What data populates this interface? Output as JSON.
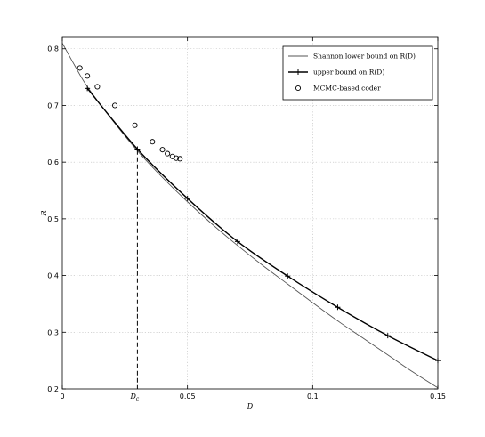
{
  "chart_data": {
    "type": "line",
    "title": "",
    "xlabel": "D",
    "ylabel": "R",
    "xlim": [
      0,
      0.15
    ],
    "ylim": [
      0.2,
      0.82
    ],
    "xticks": [
      0,
      0.05,
      0.1,
      0.15
    ],
    "xtick_labels": [
      "0",
      "0.05",
      "0.1",
      "0.15"
    ],
    "yticks": [
      0.2,
      0.3,
      0.4,
      0.5,
      0.6,
      0.7,
      0.8
    ],
    "ytick_labels": [
      "0.2",
      "0.3",
      "0.4",
      "0.5",
      "0.6",
      "0.7",
      "0.8"
    ],
    "grid": true,
    "legend_position": "top-right",
    "annotations": [
      {
        "label_main": "D",
        "label_sub": "c",
        "x": 0.03,
        "y": 0.621,
        "style": "dashed-vertical"
      }
    ],
    "series": [
      {
        "name": "Shannon lower bound on R(D)",
        "style": "thin-line",
        "color": "#555555",
        "x": [
          0,
          0.005,
          0.01,
          0.02,
          0.03,
          0.04,
          0.05,
          0.06,
          0.07,
          0.08,
          0.09,
          0.1,
          0.11,
          0.12,
          0.13,
          0.14,
          0.15
        ],
        "y": [
          0.81,
          0.77,
          0.733,
          0.674,
          0.62,
          0.573,
          0.53,
          0.49,
          0.453,
          0.418,
          0.385,
          0.352,
          0.32,
          0.29,
          0.26,
          0.23,
          0.202
        ]
      },
      {
        "name": "upper bound on R(D)",
        "style": "line-with-plus-markers",
        "color": "#000000",
        "x": [
          0.01,
          0.03,
          0.05,
          0.07,
          0.09,
          0.11,
          0.13,
          0.15
        ],
        "y": [
          0.73,
          0.623,
          0.536,
          0.46,
          0.399,
          0.344,
          0.294,
          0.25
        ]
      },
      {
        "name": "MCMC-based coder",
        "style": "circle-markers",
        "color": "#000000",
        "x": [
          0.007,
          0.01,
          0.014,
          0.021,
          0.029,
          0.036,
          0.04,
          0.042,
          0.044,
          0.0455,
          0.047
        ],
        "y": [
          0.766,
          0.752,
          0.733,
          0.7,
          0.665,
          0.636,
          0.622,
          0.615,
          0.61,
          0.607,
          0.606
        ]
      }
    ]
  }
}
